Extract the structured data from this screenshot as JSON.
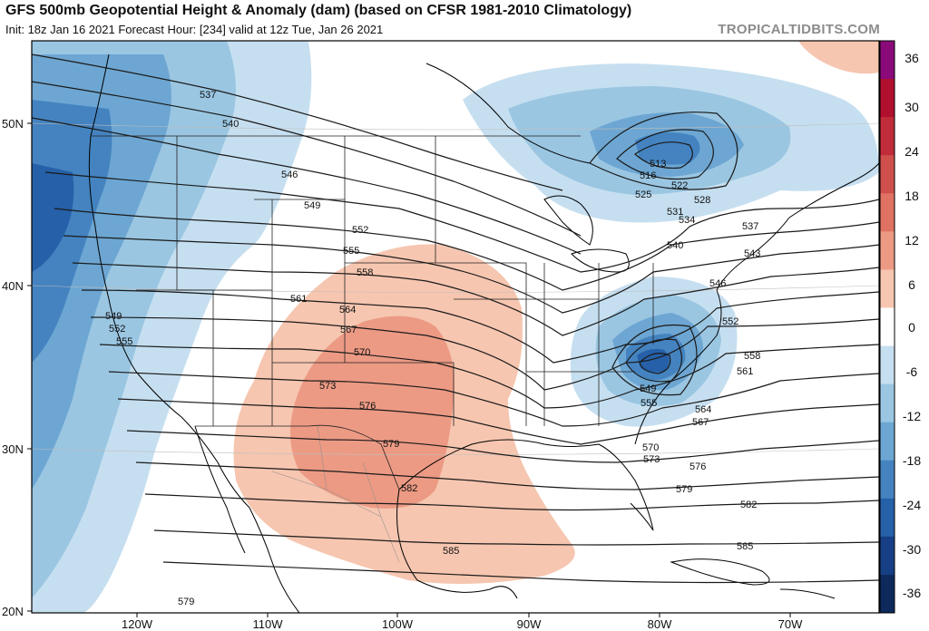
{
  "header": {
    "title": "GFS 500mb Geopotential Height & Anomaly (dam) (based on CFSR 1981-2010 Climatology)",
    "subtitle": "Init: 18z Jan 16 2021   Forecast Hour: [234]   valid at 12z Tue, Jan 26 2021",
    "brand": "TROPICALTIDBITS.COM"
  },
  "colorbar": {
    "labels": [
      "36",
      "30",
      "24",
      "18",
      "12",
      "6",
      "0",
      "-6",
      "-12",
      "-18",
      "-24",
      "-30",
      "-36"
    ],
    "colors": [
      "#8b0a7a",
      "#b0102e",
      "#c02c3a",
      "#cf4f4c",
      "#df7262",
      "#ec9a84",
      "#f6c6b0",
      "#ffffff",
      "#c6dff0",
      "#9ac6e2",
      "#6da6d2",
      "#4483c0",
      "#2660a8",
      "#173f85",
      "#0e2a5c"
    ]
  },
  "axes": {
    "lat_labels": [
      "50N",
      "40N",
      "30N",
      "20N"
    ],
    "lon_labels": [
      "120W",
      "110W",
      "100W",
      "90W",
      "80W",
      "70W"
    ]
  },
  "contour_labels": [
    "537",
    "540",
    "546",
    "549",
    "552",
    "555",
    "558",
    "561",
    "564",
    "567",
    "570",
    "573",
    "576",
    "579",
    "582",
    "585",
    "549",
    "552",
    "555",
    "513",
    "516",
    "522",
    "525",
    "528",
    "531",
    "534",
    "537",
    "540",
    "543",
    "546",
    "552",
    "558",
    "561",
    "549",
    "555",
    "564",
    "567",
    "570",
    "573",
    "576",
    "579",
    "582",
    "585",
    "579"
  ],
  "colors": {
    "positive_anomaly": "#f6c6b0",
    "positive_anomaly_strong": "#ec9a84",
    "negative_anomaly": "#c6dff0",
    "negative_mid": "#9ac6e2",
    "negative_strong": "#4483c0",
    "negative_deep": "#2660a8"
  }
}
